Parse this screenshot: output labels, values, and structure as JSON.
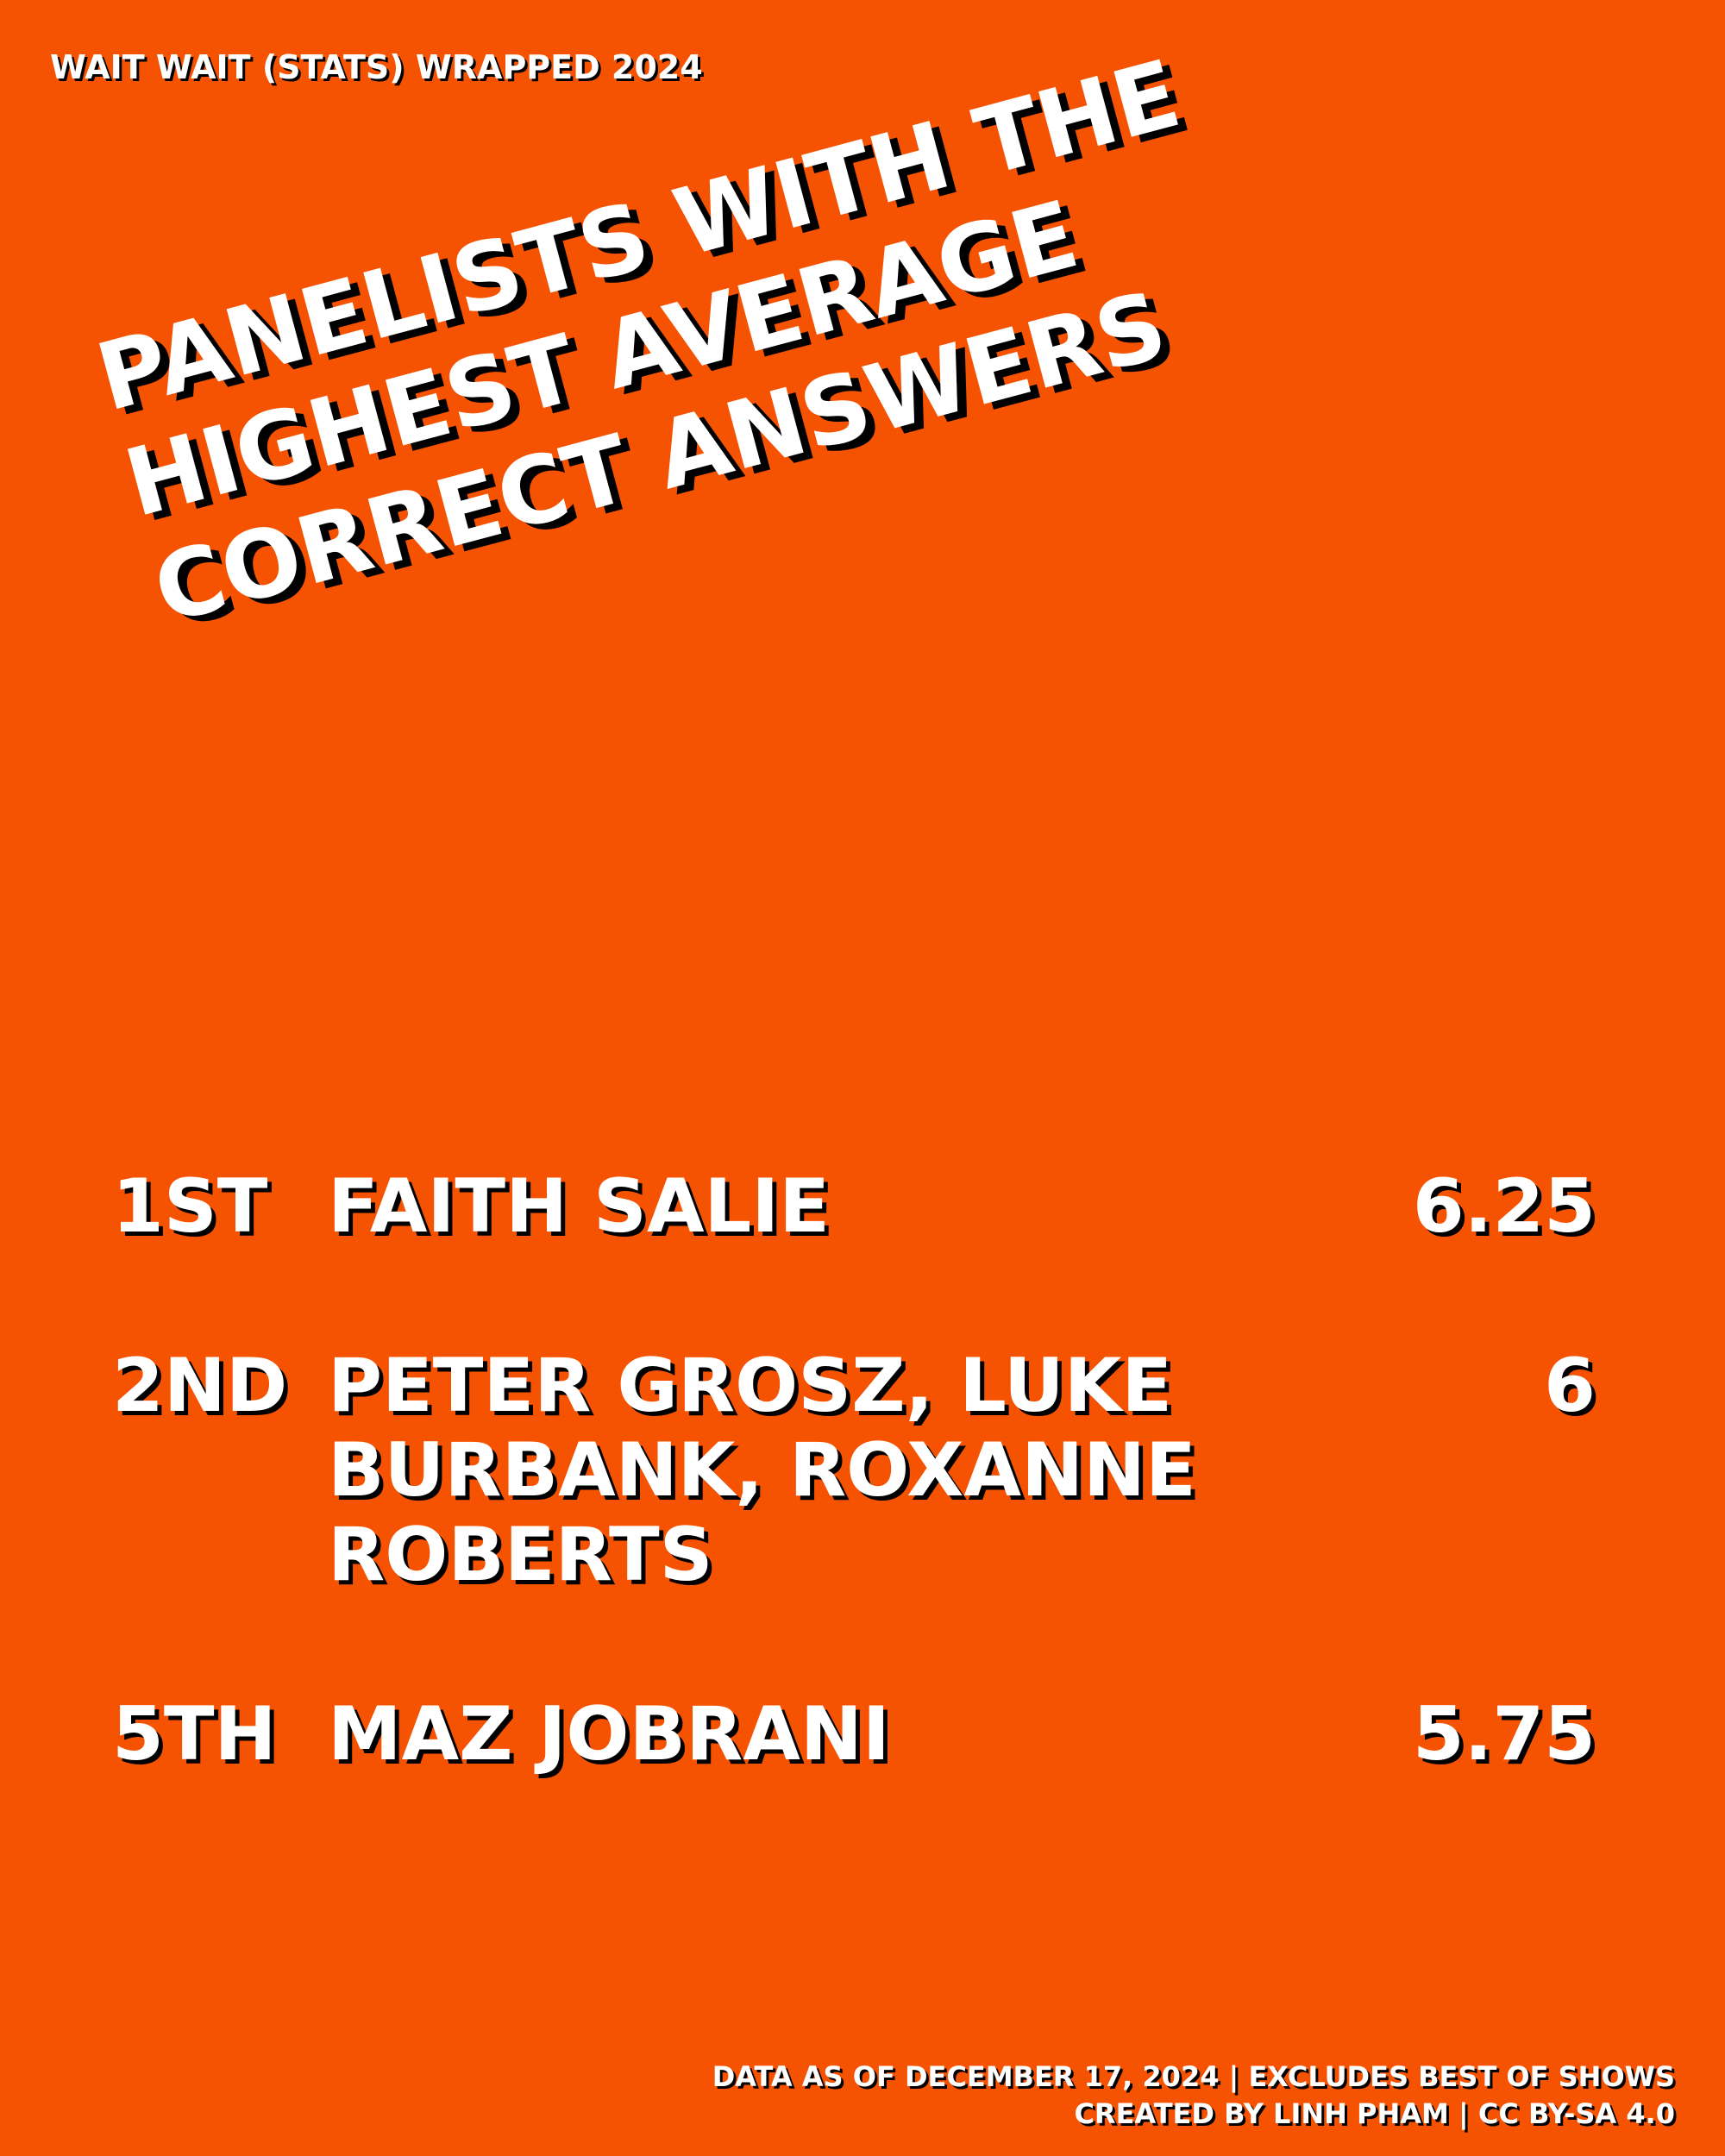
{
  "header": {
    "label": "WAIT WAIT (STATS) WRAPPED 2024"
  },
  "headline": {
    "lines": [
      "PANELISTS WITH THE",
      "HIGHEST AVERAGE",
      "CORRECT ANSWERS"
    ]
  },
  "rankings": [
    {
      "rank": "1ST",
      "name": "FAITH SALIE",
      "value": "6.25"
    },
    {
      "rank": "2ND",
      "name": "PETER GROSZ, LUKE BURBANK, ROXANNE ROBERTS",
      "value": "6"
    },
    {
      "rank": "5TH",
      "name": "MAZ JOBRANI",
      "value": "5.75"
    }
  ],
  "footer": {
    "line1": "DATA AS OF DECEMBER 17, 2024 | EXCLUDES BEST OF SHOWS",
    "line2": "CREATED BY LINH PHAM | CC BY-SA 4.0"
  },
  "colors": {
    "background": "#F55201",
    "text": "#FFFFFF",
    "shadow": "#000000"
  }
}
